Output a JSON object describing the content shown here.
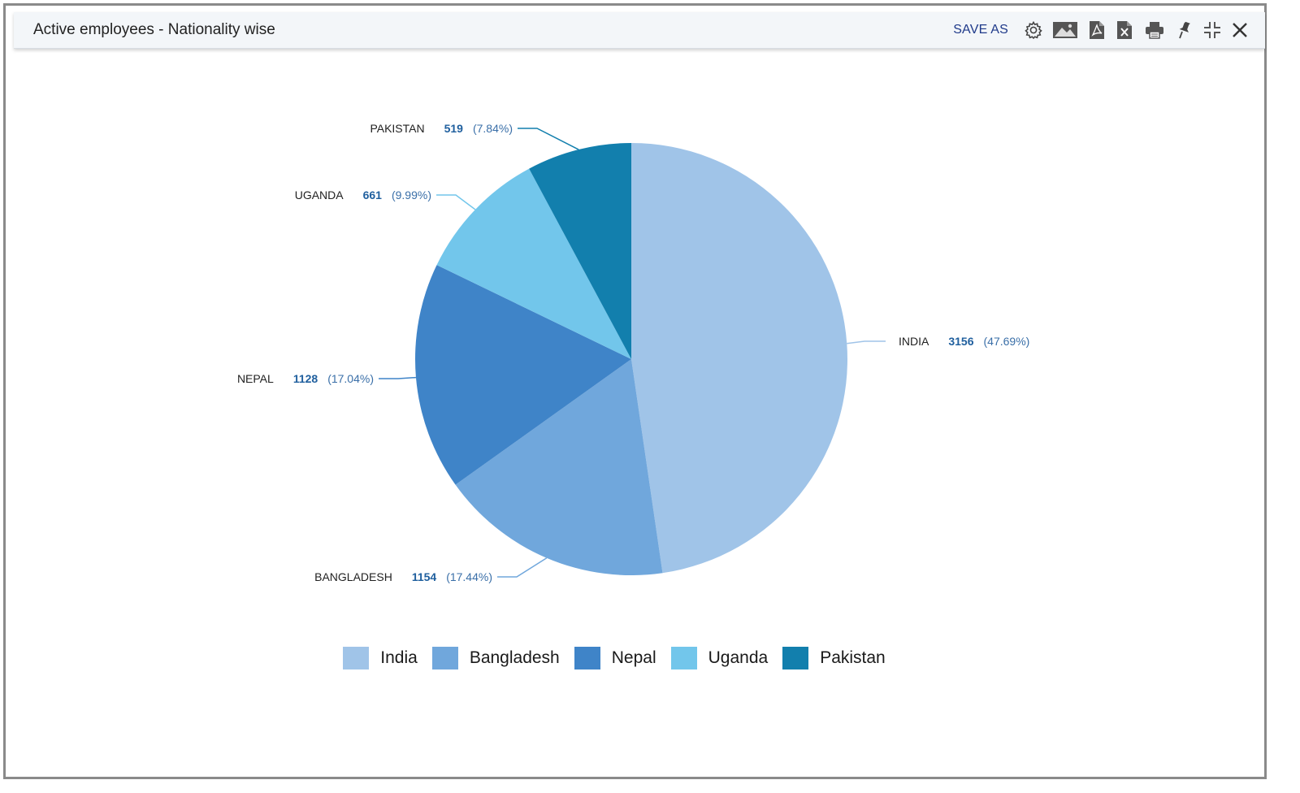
{
  "window": {
    "title": "Active employees - Nationality wise",
    "toolbar": {
      "save_as_label": "SAVE AS",
      "icons": [
        "gear-icon",
        "image-icon",
        "pdf-icon",
        "excel-icon",
        "print-icon",
        "pin-icon",
        "collapse-icon",
        "close-icon"
      ]
    }
  },
  "chart_data": {
    "type": "pie",
    "categories": [
      "India",
      "Bangladesh",
      "Nepal",
      "Uganda",
      "Pakistan"
    ],
    "values": [
      3156,
      1154,
      1128,
      661,
      519
    ],
    "percent_labels": [
      "(47.69%)",
      "(17.44%)",
      "(17.04%)",
      "(9.99%)",
      "(7.84%)"
    ],
    "slice_labels": [
      "INDIA",
      "BANGLADESH",
      "NEPAL",
      "UGANDA",
      "PAKISTAN"
    ],
    "colors": [
      "#a0c4e8",
      "#70a7dc",
      "#3f84c8",
      "#72c6eb",
      "#127fad"
    ],
    "legend_position": "bottom"
  }
}
